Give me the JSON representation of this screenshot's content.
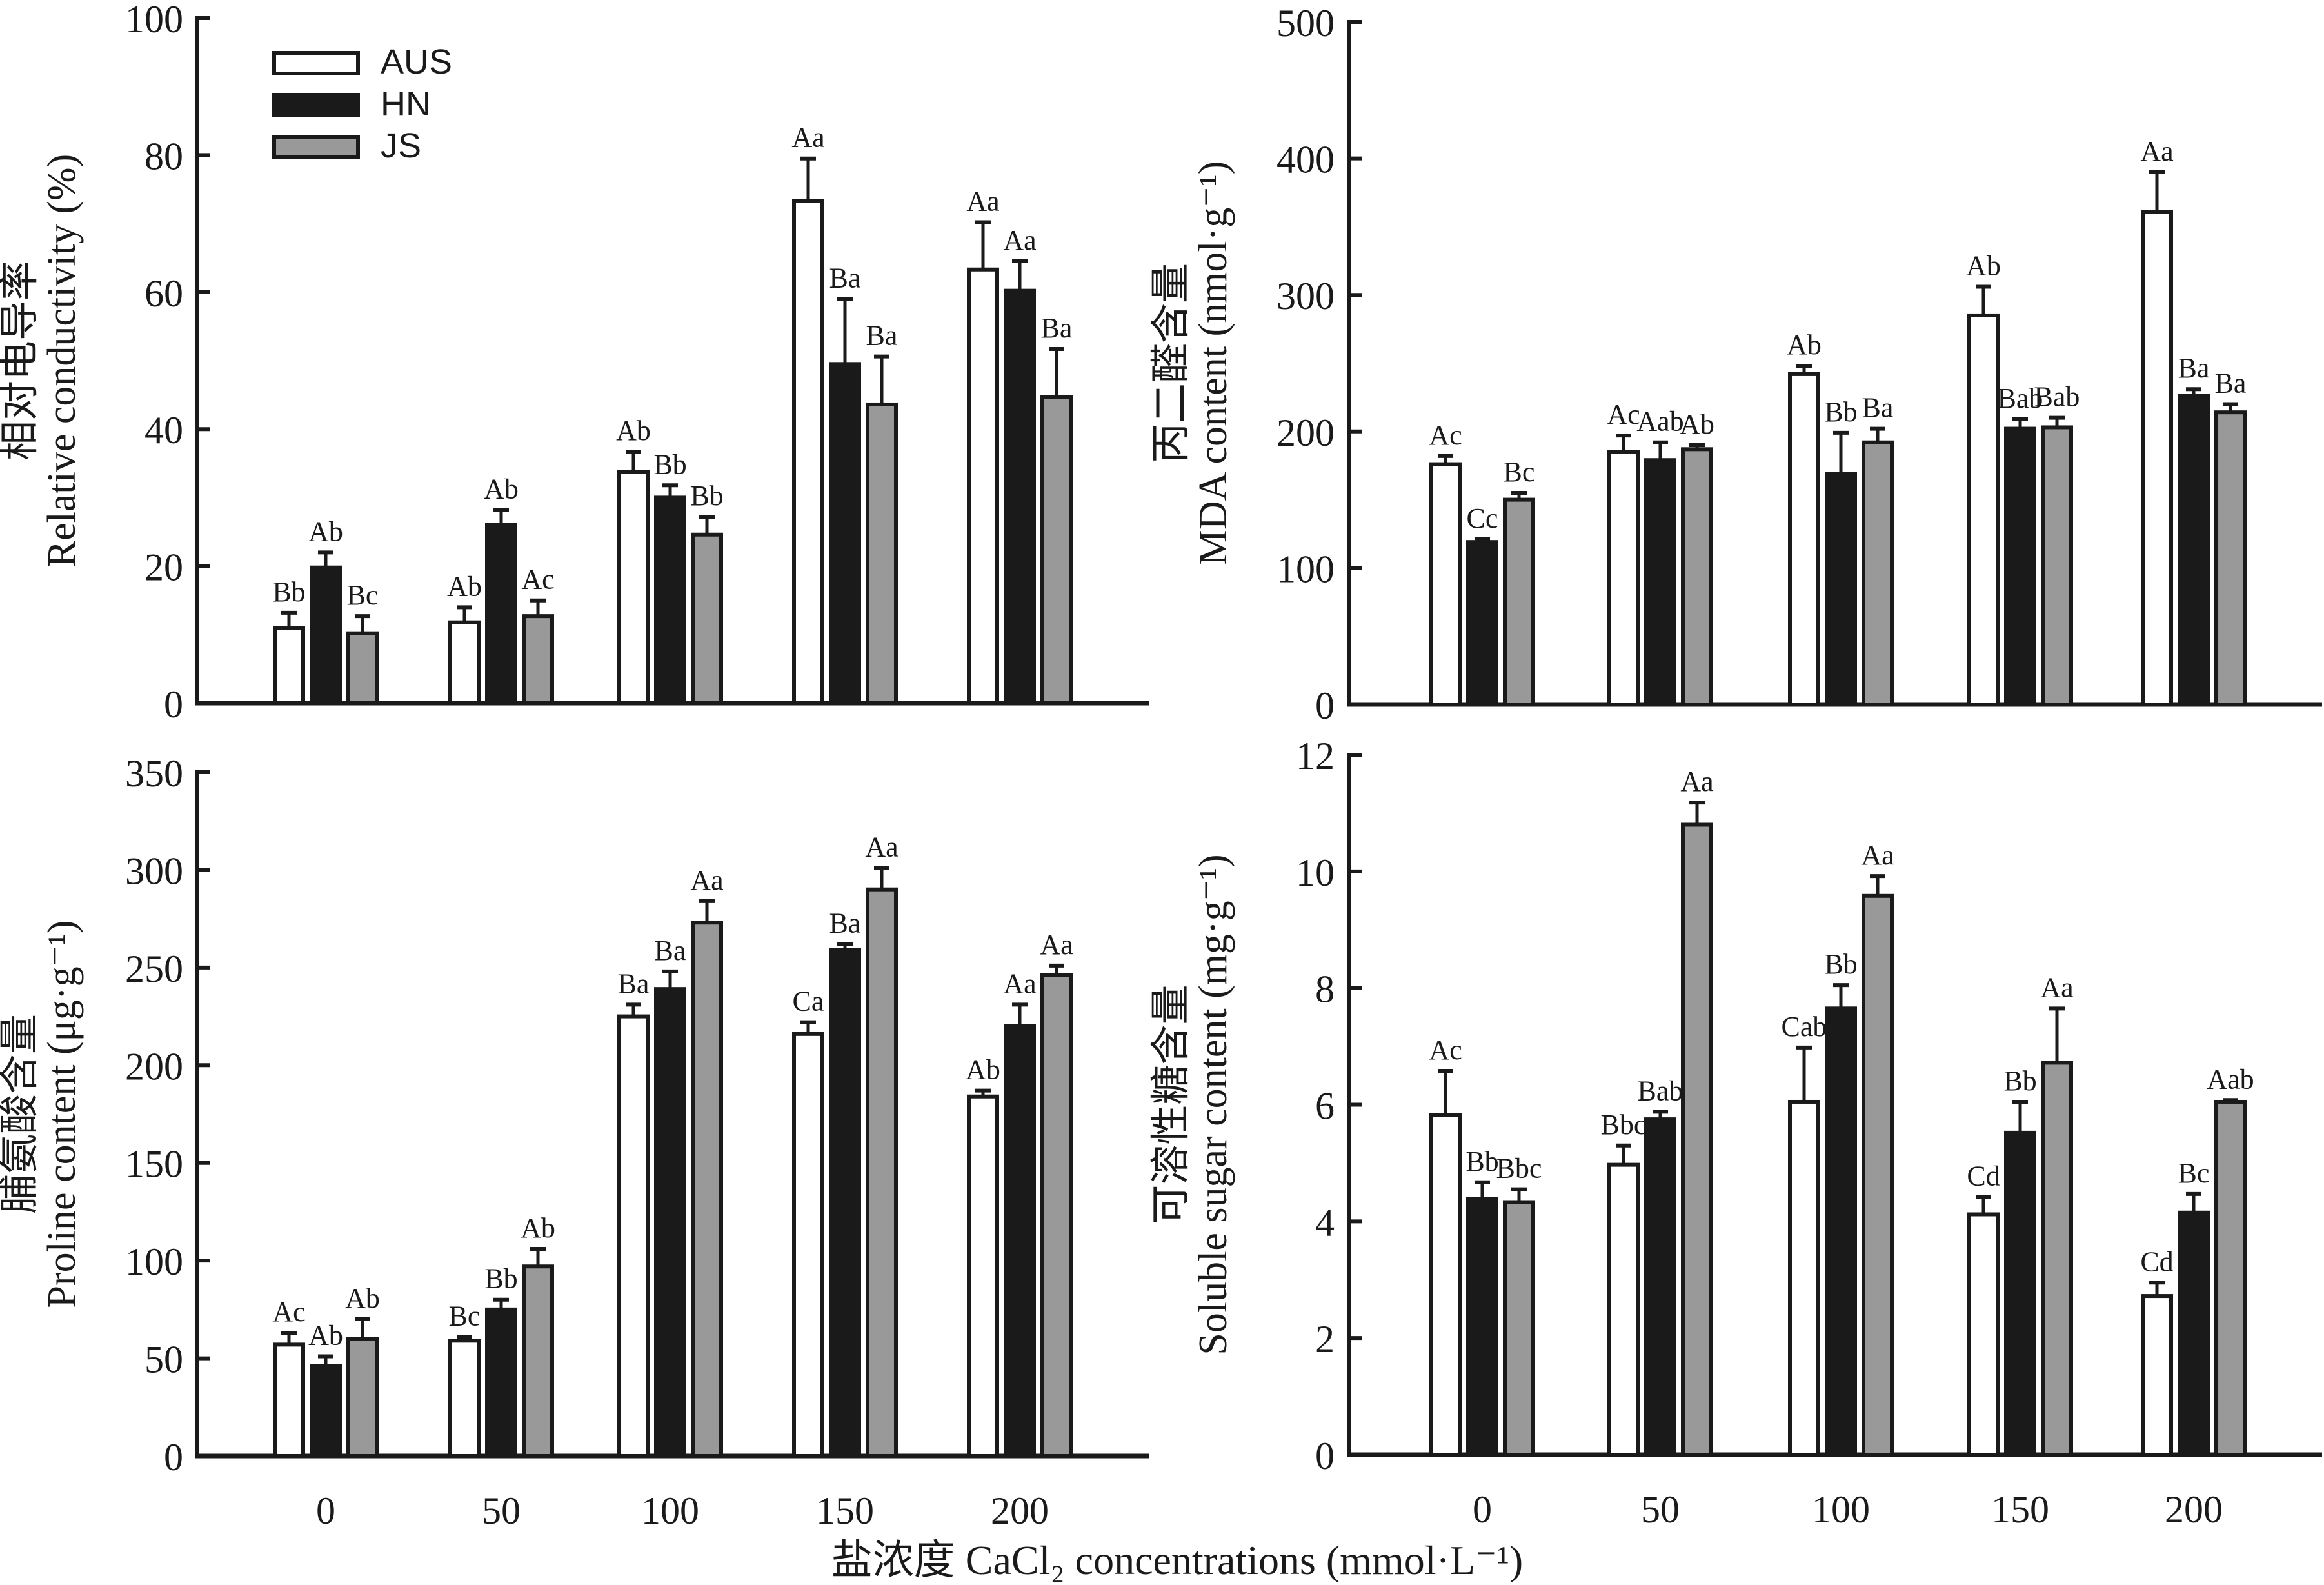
{
  "legend": [
    {
      "name": "AUS",
      "color": "#ffffff"
    },
    {
      "name": "HN",
      "color": "#1a1a1a"
    },
    {
      "name": "JS",
      "color": "#999999"
    }
  ],
  "x_axis_title": "盐浓度 CaCl₂ concentrations (mmol·L⁻¹)",
  "chart_data": [
    {
      "type": "bar",
      "panel": "top-left",
      "ylabel_cn": "相对电导率",
      "ylabel": "Relative conductivity (%)",
      "categories": [
        "0",
        "50",
        "100",
        "150",
        "200"
      ],
      "ylim": [
        0,
        100
      ],
      "yticks": [
        0,
        20,
        40,
        60,
        80,
        100
      ],
      "legend_position": "top-left",
      "series": [
        {
          "name": "AUS",
          "values": [
            11.0,
            11.8,
            33.8,
            73.3,
            63.3
          ],
          "errors": [
            2.2,
            2.2,
            2.9,
            6.2,
            6.9
          ],
          "labels": [
            "Bb",
            "Ab",
            "Ab",
            "Aa",
            "Aa"
          ]
        },
        {
          "name": "HN",
          "values": [
            19.8,
            26.0,
            30.0,
            49.5,
            60.2
          ],
          "errors": [
            2.2,
            2.2,
            1.8,
            9.5,
            4.3
          ],
          "labels": [
            "Ab",
            "Ab",
            "Bb",
            "Ba",
            "Aa"
          ]
        },
        {
          "name": "JS",
          "values": [
            10.2,
            12.7,
            24.6,
            43.6,
            44.7
          ],
          "errors": [
            2.5,
            2.3,
            2.6,
            7.0,
            7.0
          ],
          "labels": [
            "Bc",
            "Ac",
            "Bb",
            "Ba",
            "Ba"
          ]
        }
      ]
    },
    {
      "type": "bar",
      "panel": "top-right",
      "ylabel_cn": "丙二醛含量",
      "ylabel": "MDA content (nmol·g⁻¹)",
      "categories": [
        "0",
        "50",
        "100",
        "150",
        "200"
      ],
      "ylim": [
        0,
        500
      ],
      "yticks": [
        0,
        100,
        200,
        300,
        400,
        500
      ],
      "series": [
        {
          "name": "AUS",
          "values": [
            176,
            185,
            242,
            285,
            361
          ],
          "errors": [
            6,
            12,
            6,
            21,
            29
          ],
          "labels": [
            "Ac",
            "Ac",
            "Ab",
            "Ab",
            "Aa"
          ]
        },
        {
          "name": "HN",
          "values": [
            119,
            179,
            169,
            202,
            226
          ],
          "errors": [
            2,
            13,
            30,
            7,
            5
          ],
          "labels": [
            "Cc",
            "Aab",
            "Bb",
            "Bab",
            "Ba"
          ]
        },
        {
          "name": "JS",
          "values": [
            150,
            187,
            192,
            203,
            214
          ],
          "errors": [
            5,
            3,
            10,
            7,
            6
          ],
          "labels": [
            "Bc",
            "Ab",
            "Ba",
            "Bab",
            "Ba"
          ]
        }
      ]
    },
    {
      "type": "bar",
      "panel": "bottom-left",
      "ylabel_cn": "脯氨酸含量",
      "ylabel": "Proline content (μg·g⁻¹)",
      "categories": [
        "0",
        "50",
        "100",
        "150",
        "200"
      ],
      "ylim": [
        0,
        350
      ],
      "yticks": [
        0,
        50,
        100,
        150,
        200,
        250,
        300,
        350
      ],
      "series": [
        {
          "name": "AUS",
          "values": [
            57,
            59,
            225,
            216,
            184
          ],
          "errors": [
            6,
            2,
            6,
            6,
            3
          ],
          "labels": [
            "Ac",
            "Bc",
            "Ba",
            "Ca",
            "Ab"
          ]
        },
        {
          "name": "HN",
          "values": [
            46,
            75,
            239,
            259,
            220
          ],
          "errors": [
            5,
            5,
            9,
            3,
            11
          ],
          "labels": [
            "Ab",
            "Bb",
            "Ba",
            "Ba",
            "Aa"
          ]
        },
        {
          "name": "JS",
          "values": [
            60,
            97,
            273,
            290,
            246
          ],
          "errors": [
            10,
            9,
            11,
            11,
            5
          ],
          "labels": [
            "Ab",
            "Ab",
            "Aa",
            "Aa",
            "Aa"
          ]
        }
      ]
    },
    {
      "type": "bar",
      "panel": "bottom-right",
      "ylabel_cn": "可溶性糖含量",
      "ylabel": "Soluble sugar content (mg·g⁻¹)",
      "categories": [
        "0",
        "50",
        "100",
        "150",
        "200"
      ],
      "ylim": [
        0,
        12
      ],
      "yticks": [
        0,
        2,
        4,
        6,
        8,
        10,
        12
      ],
      "series": [
        {
          "name": "AUS",
          "values": [
            5.82,
            4.97,
            6.05,
            4.12,
            2.72
          ],
          "errors": [
            0.76,
            0.33,
            0.93,
            0.3,
            0.23
          ],
          "labels": [
            "Ac",
            "Bbc",
            "Cab",
            "Cd",
            "Cd"
          ]
        },
        {
          "name": "HN",
          "values": [
            4.38,
            5.75,
            7.65,
            5.52,
            4.15
          ],
          "errors": [
            0.29,
            0.13,
            0.4,
            0.53,
            0.32
          ],
          "labels": [
            "Bb",
            "Bab",
            "Bb",
            "Bb",
            "Bc"
          ]
        },
        {
          "name": "JS",
          "values": [
            4.33,
            10.8,
            9.58,
            6.72,
            6.05
          ],
          "errors": [
            0.22,
            0.38,
            0.34,
            0.93,
            0.03
          ],
          "labels": [
            "Bbc",
            "Aa",
            "Aa",
            "Aa",
            "Aab"
          ]
        }
      ]
    }
  ]
}
